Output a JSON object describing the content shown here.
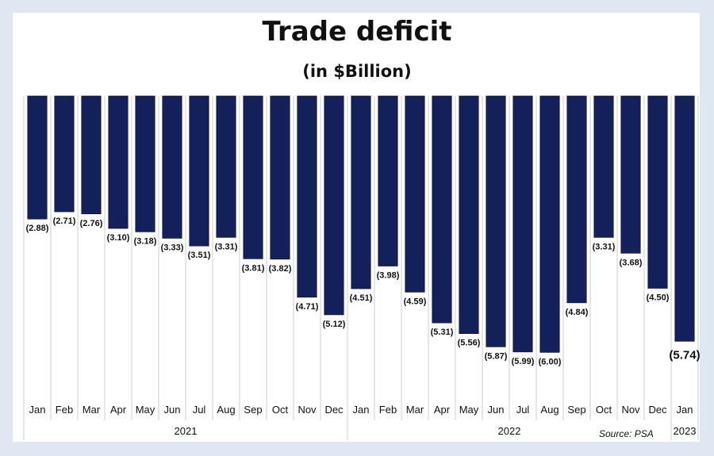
{
  "chart_data": {
    "type": "bar",
    "title": "Trade deficit",
    "subtitle": "(in $Billion)",
    "categories": [
      "Jan",
      "Feb",
      "Mar",
      "Apr",
      "May",
      "Jun",
      "Jul",
      "Aug",
      "Sep",
      "Oct",
      "Nov",
      "Dec",
      "Jan",
      "Feb",
      "Mar",
      "Apr",
      "May",
      "Jun",
      "Jul",
      "Aug",
      "Sep",
      "Oct",
      "Nov",
      "Dec",
      "Jan"
    ],
    "values": [
      -2.88,
      -2.71,
      -2.76,
      -3.1,
      -3.18,
      -3.33,
      -3.51,
      -3.31,
      -3.81,
      -3.82,
      -4.71,
      -5.12,
      -4.51,
      -3.98,
      -4.59,
      -5.31,
      -5.56,
      -5.87,
      -5.99,
      -6.0,
      -4.84,
      -3.31,
      -3.68,
      -4.5,
      -5.74
    ],
    "data_labels": [
      "(2.88)",
      "(2.71)",
      "(2.76)",
      "(3.10)",
      "(3.18)",
      "(3.33)",
      "(3.51)",
      "(3.31)",
      "(3.81)",
      "(3.82)",
      "(4.71)",
      "(5.12)",
      "(4.51)",
      "(3.98)",
      "(4.59)",
      "(5.31)",
      "(5.56)",
      "(5.87)",
      "(5.99)",
      "(6.00)",
      "(4.84)",
      "(3.31)",
      "(3.68)",
      "(4.50)",
      "(5.74)"
    ],
    "year_groups": [
      {
        "label": "2021",
        "start": 0,
        "end": 11
      },
      {
        "label": "2022",
        "start": 12,
        "end": 23
      },
      {
        "label": "2023",
        "start": 24,
        "end": 24
      }
    ],
    "ylim": [
      -6.5,
      0
    ],
    "grid": true,
    "bar_color": "#14205a",
    "source": "Source: PSA"
  }
}
